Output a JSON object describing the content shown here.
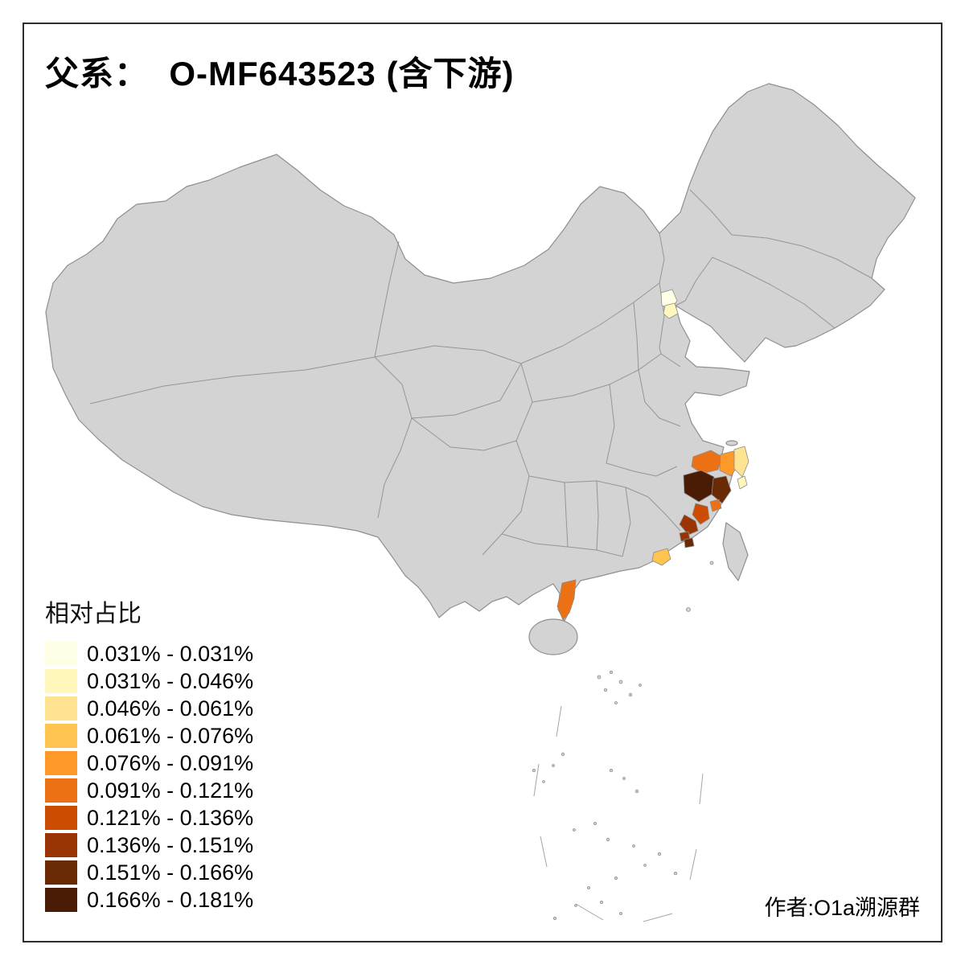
{
  "title": "父系：  O-MF643523 (含下游)",
  "attribution": "作者:O1a溯源群",
  "legend": {
    "title": "相对占比",
    "classes": [
      {
        "label": "0.031% - 0.031%",
        "color": "#FFFFE5"
      },
      {
        "label": "0.031% - 0.046%",
        "color": "#FFF7BC"
      },
      {
        "label": "0.046% - 0.061%",
        "color": "#FEE391"
      },
      {
        "label": "0.061% - 0.076%",
        "color": "#FEC44F"
      },
      {
        "label": "0.076% - 0.091%",
        "color": "#FE9929"
      },
      {
        "label": "0.091% - 0.121%",
        "color": "#EC7014"
      },
      {
        "label": "0.121% - 0.136%",
        "color": "#CC4C02"
      },
      {
        "label": "0.136% - 0.151%",
        "color": "#993404"
      },
      {
        "label": "0.151% - 0.166%",
        "color": "#6B2A06"
      },
      {
        "label": "0.166% - 0.181%",
        "color": "#4A1C05"
      }
    ]
  },
  "map": {
    "base_fill": "#D3D3D3",
    "boundary_color": "#8F8F8F",
    "background": "#FFFFFF",
    "highlighted_regions": [
      {
        "id": "region-01",
        "class_index": 0
      },
      {
        "id": "region-02",
        "class_index": 1
      },
      {
        "id": "region-03",
        "class_index": 5
      },
      {
        "id": "region-04",
        "class_index": 4
      },
      {
        "id": "region-05",
        "class_index": 2
      },
      {
        "id": "region-06",
        "class_index": 1
      },
      {
        "id": "region-07",
        "class_index": 9
      },
      {
        "id": "region-08",
        "class_index": 8
      },
      {
        "id": "region-09",
        "class_index": 5
      },
      {
        "id": "region-10",
        "class_index": 6
      },
      {
        "id": "region-11",
        "class_index": 7
      },
      {
        "id": "region-12",
        "class_index": 7
      },
      {
        "id": "region-13",
        "class_index": 8
      },
      {
        "id": "region-14",
        "class_index": 3
      },
      {
        "id": "region-15",
        "class_index": 5
      }
    ]
  }
}
